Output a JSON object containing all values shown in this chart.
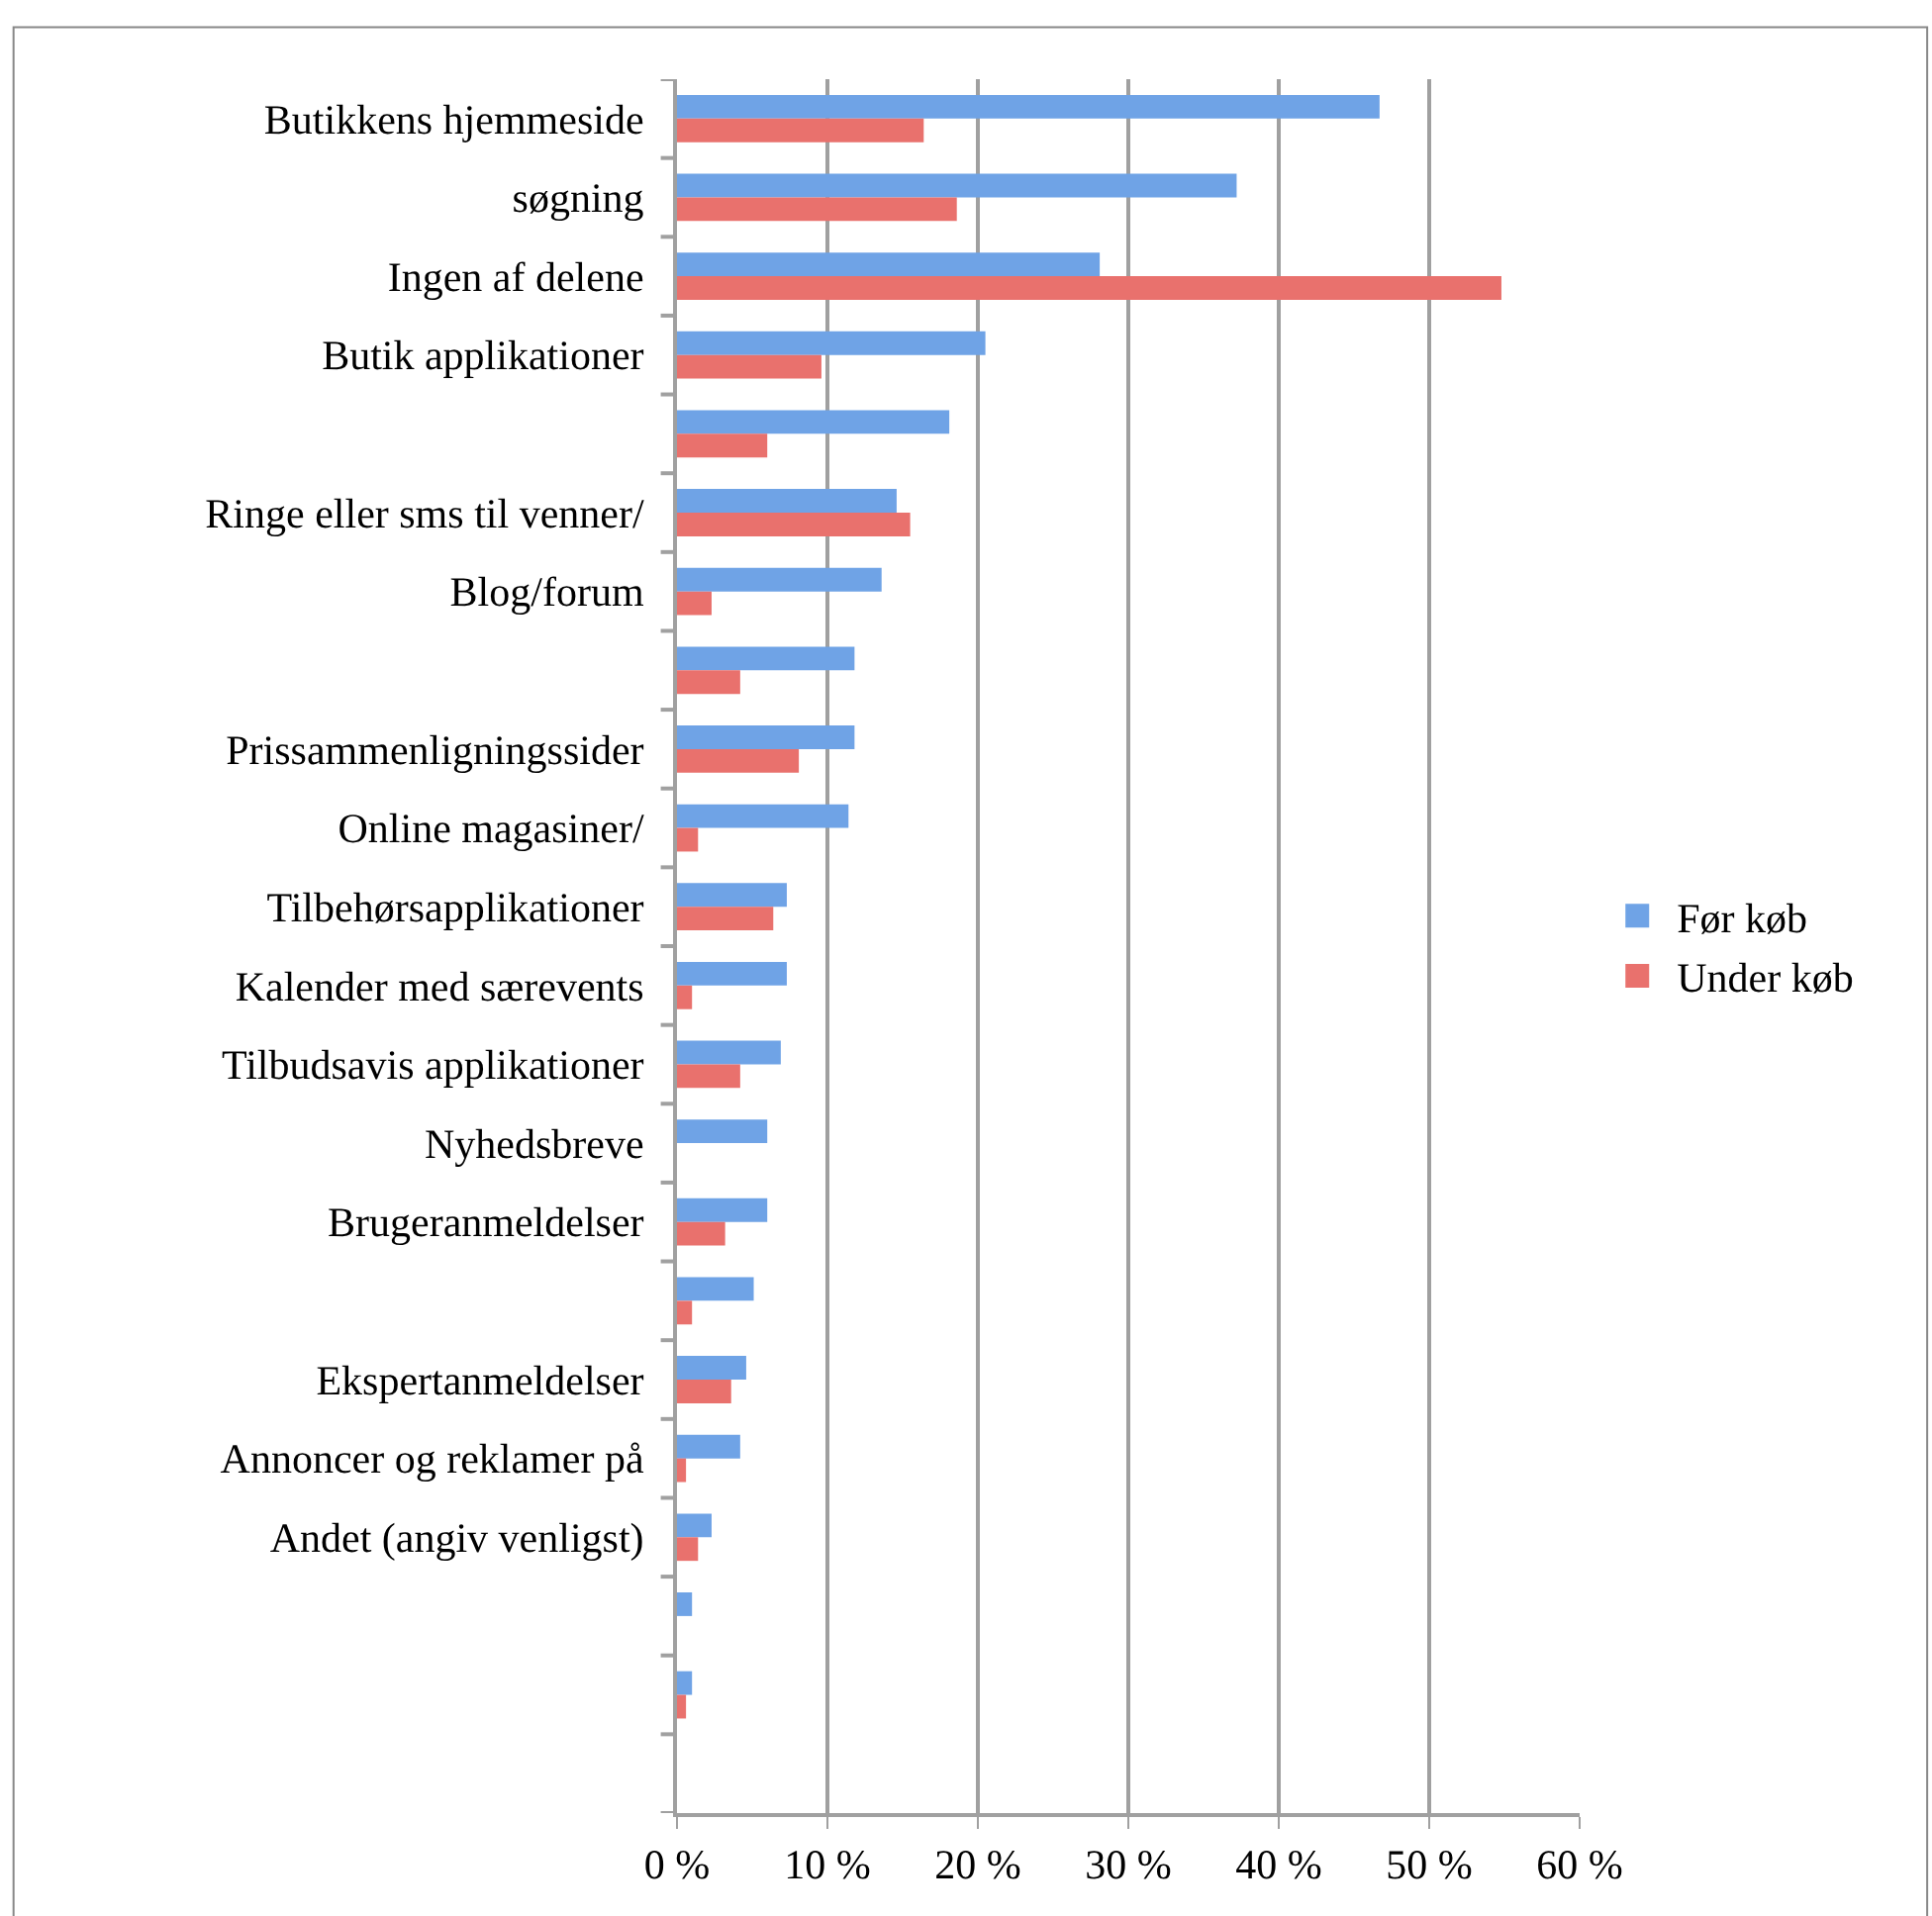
{
  "chart_data": {
    "type": "bar",
    "orientation": "horizontal",
    "categories": [
      "Butikkens hjemmeside",
      "søgning",
      "Ingen af delene",
      "Butik applikationer",
      null,
      "Ringe eller sms til venner/",
      "Blog/forum",
      null,
      "Prissammenligningssider",
      "Online magasiner/",
      "Tilbehørsapplikationer",
      "Kalender med særevents",
      "Tilbudsavis applikationer",
      "Nyhedsbreve",
      "Brugeranmeldelser",
      null,
      "Ekspertanmeldelser",
      "Annoncer og reklamer på",
      "Andet (angiv venligst)",
      null,
      null,
      null
    ],
    "series": [
      {
        "name": "Før køb",
        "color": "#6fa3e6",
        "values": [
          46.7,
          37.2,
          28.1,
          20.5,
          18.1,
          14.6,
          13.6,
          11.8,
          11.8,
          11.4,
          7.3,
          7.3,
          6.9,
          6.0,
          6.0,
          5.1,
          4.6,
          4.2,
          2.3,
          1.0,
          1.0,
          0
        ]
      },
      {
        "name": "Under køb",
        "color": "#e9716d",
        "values": [
          16.4,
          18.6,
          54.8,
          9.6,
          6.0,
          15.5,
          2.3,
          4.2,
          8.1,
          1.4,
          6.4,
          1.0,
          4.2,
          0,
          3.2,
          1.0,
          3.6,
          0.6,
          1.4,
          0,
          0.6,
          0
        ]
      }
    ],
    "xlim": [
      0,
      60
    ],
    "xticks": [
      {
        "value": 0,
        "label": "0 %"
      },
      {
        "value": 10,
        "label": "10 %"
      },
      {
        "value": 20,
        "label": "20 %"
      },
      {
        "value": 30,
        "label": "30 %"
      },
      {
        "value": 40,
        "label": "40 %"
      },
      {
        "value": 50,
        "label": "50 %"
      },
      {
        "value": 60,
        "label": "60 %"
      }
    ],
    "grid": "x",
    "legend": "right"
  }
}
